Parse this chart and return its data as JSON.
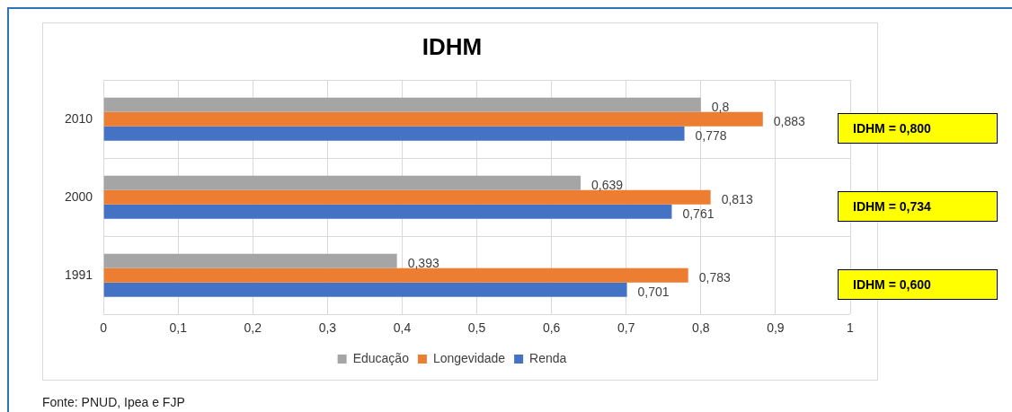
{
  "chart_data": {
    "type": "bar",
    "orientation": "horizontal",
    "title": "IDHM",
    "categories": [
      "2010",
      "2000",
      "1991"
    ],
    "series": [
      {
        "name": "Educação",
        "color": "#a5a5a5",
        "values": [
          0.8,
          0.639,
          0.393
        ],
        "value_labels": [
          "0,8",
          "0,639",
          "0,393"
        ]
      },
      {
        "name": "Longevidade",
        "color": "#ed7d31",
        "values": [
          0.883,
          0.813,
          0.783
        ],
        "value_labels": [
          "0,883",
          "0,813",
          "0,783"
        ]
      },
      {
        "name": "Renda",
        "color": "#4472c4",
        "values": [
          0.778,
          0.761,
          0.701
        ],
        "value_labels": [
          "0,778",
          "0,761",
          "0,701"
        ]
      }
    ],
    "xlim": [
      0,
      1
    ],
    "xticks": [
      0,
      {
        "value": 0.1,
        "label": "0,1"
      },
      {
        "value": 0.2,
        "label": "0,2"
      },
      {
        "value": 0.3,
        "label": "0,3"
      },
      {
        "value": 0.4,
        "label": "0,4"
      },
      {
        "value": 0.5,
        "label": "0,5"
      },
      {
        "value": 0.6,
        "label": "0,6"
      },
      {
        "value": 0.7,
        "label": "0,7"
      },
      {
        "value": 0.8,
        "label": "0,8"
      },
      {
        "value": 0.9,
        "label": "0,9"
      },
      1
    ],
    "grid": "x",
    "legend": "bottom",
    "annotations": [
      "IDHM = 0,800",
      "IDHM = 0,734",
      "IDHM = 0,600",
      "Fonte: PNUD, Ipea e FJP"
    ]
  }
}
